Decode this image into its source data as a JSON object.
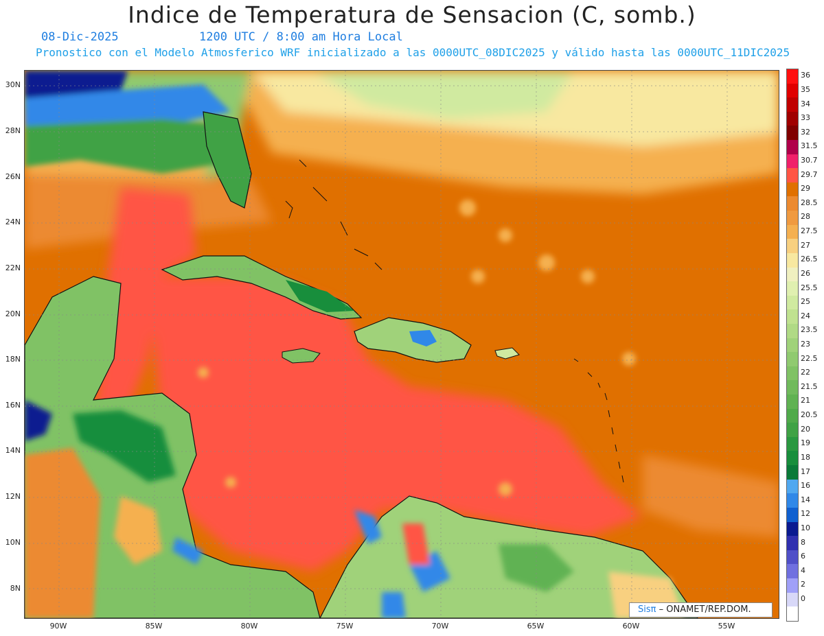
{
  "title": "Indice de Temperatura de Sensacion (C, somb.)",
  "date": "08-Dic-2025",
  "time": "1200 UTC / 8:00 am Hora Local",
  "model_line": "Pronostico con el Modelo Atmosferico WRF inicializado a las 0000UTC_08DIC2025 y válido hasta las  0000UTC_11DIC2025",
  "credit": {
    "logo": "Sisπ",
    "text": " – ONAMET/REP.DOM."
  },
  "lat_labels": [
    "30N",
    "28N",
    "26N",
    "24N",
    "22N",
    "20N",
    "18N",
    "16N",
    "14N",
    "12N",
    "10N",
    "8N"
  ],
  "lon_labels": [
    "90W",
    "85W",
    "80W",
    "75W",
    "70W",
    "65W",
    "60W",
    "55W"
  ],
  "legend": [
    {
      "label": "36",
      "color": "#ff1010"
    },
    {
      "label": "35",
      "color": "#e00000"
    },
    {
      "label": "34",
      "color": "#c00000"
    },
    {
      "label": "33",
      "color": "#a00000"
    },
    {
      "label": "32",
      "color": "#800000"
    },
    {
      "label": "31.5",
      "color": "#b0004a"
    },
    {
      "label": "30.7",
      "color": "#f0206a"
    },
    {
      "label": "29.7",
      "color": "#ff5544"
    },
    {
      "label": "29",
      "color": "#e07000"
    },
    {
      "label": "28.5",
      "color": "#ec8a30"
    },
    {
      "label": "28",
      "color": "#f09a40"
    },
    {
      "label": "27.5",
      "color": "#f5b050"
    },
    {
      "label": "27",
      "color": "#f8d080"
    },
    {
      "label": "26.5",
      "color": "#f8e8a0"
    },
    {
      "label": "26",
      "color": "#f0f0c0"
    },
    {
      "label": "25.5",
      "color": "#e0f0b0"
    },
    {
      "label": "25",
      "color": "#d0eaa0"
    },
    {
      "label": "24",
      "color": "#c0e290"
    },
    {
      "label": "23.5",
      "color": "#b0da85"
    },
    {
      "label": "23",
      "color": "#a0d27a"
    },
    {
      "label": "22.5",
      "color": "#90ca70"
    },
    {
      "label": "22",
      "color": "#80c265"
    },
    {
      "label": "21.5",
      "color": "#70ba5c"
    },
    {
      "label": "21",
      "color": "#60b252"
    },
    {
      "label": "20.5",
      "color": "#50aa4a"
    },
    {
      "label": "20",
      "color": "#40a245"
    },
    {
      "label": "19",
      "color": "#2a9840"
    },
    {
      "label": "18",
      "color": "#188e3c"
    },
    {
      "label": "17",
      "color": "#0a7a38"
    },
    {
      "label": "16",
      "color": "#50a8f0"
    },
    {
      "label": "14",
      "color": "#3088e8"
    },
    {
      "label": "12",
      "color": "#1060d0"
    },
    {
      "label": "10",
      "color": "#0a1a90"
    },
    {
      "label": "8",
      "color": "#3030b0"
    },
    {
      "label": "6",
      "color": "#5050c8"
    },
    {
      "label": "4",
      "color": "#7070e0"
    },
    {
      "label": "2",
      "color": "#a0a0f8"
    },
    {
      "label": "0",
      "color": "#d8d8f8"
    },
    {
      "label": "",
      "color": "#ffffff"
    }
  ]
}
